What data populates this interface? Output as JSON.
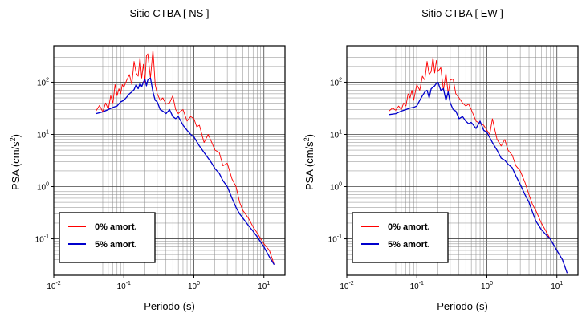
{
  "chart_data": [
    {
      "type": "line",
      "title": "Sitio CTBA [ NS ]",
      "xlabel": "Periodo (s)",
      "ylabel_base": "PSA (cm/s",
      "ylabel_sup": "2",
      "ylabel_close": ")",
      "xscale": "log",
      "yscale": "log",
      "xlim": [
        0.01,
        20
      ],
      "ylim": [
        0.02,
        500
      ],
      "grid": true,
      "legend_position": "bottom-left",
      "x_ticks": [
        {
          "value": 0.01,
          "base": "10",
          "exp": "-2"
        },
        {
          "value": 0.1,
          "base": "10",
          "exp": "-1"
        },
        {
          "value": 1,
          "base": "10",
          "exp": "0"
        },
        {
          "value": 10,
          "base": "10",
          "exp": "1"
        }
      ],
      "y_ticks": [
        {
          "value": 0.1,
          "base": "10",
          "exp": "-1"
        },
        {
          "value": 1,
          "base": "10",
          "exp": "0"
        },
        {
          "value": 10,
          "base": "10",
          "exp": "1"
        },
        {
          "value": 100,
          "base": "10",
          "exp": "2"
        }
      ],
      "series": [
        {
          "name": "0% amort.",
          "color": "#ff0000",
          "x": [
            0.04,
            0.045,
            0.05,
            0.055,
            0.06,
            0.065,
            0.07,
            0.075,
            0.08,
            0.085,
            0.09,
            0.095,
            0.1,
            0.11,
            0.12,
            0.13,
            0.14,
            0.15,
            0.16,
            0.17,
            0.18,
            0.19,
            0.2,
            0.21,
            0.22,
            0.24,
            0.26,
            0.28,
            0.3,
            0.33,
            0.36,
            0.4,
            0.45,
            0.5,
            0.55,
            0.6,
            0.65,
            0.7,
            0.8,
            0.9,
            1.0,
            1.1,
            1.2,
            1.4,
            1.6,
            1.8,
            2.0,
            2.3,
            2.6,
            3.0,
            3.5,
            4.0,
            4.5,
            5.0,
            6.0,
            7.0,
            8.0,
            10.0,
            12.0,
            14.0
          ],
          "y": [
            28,
            36,
            27,
            40,
            30,
            55,
            40,
            90,
            55,
            75,
            60,
            90,
            80,
            110,
            140,
            90,
            250,
            150,
            130,
            300,
            120,
            220,
            100,
            320,
            350,
            120,
            420,
            90,
            60,
            45,
            50,
            38,
            40,
            55,
            30,
            25,
            28,
            30,
            18,
            22,
            20,
            14,
            15,
            7,
            10,
            7,
            5,
            4.5,
            2.5,
            2.8,
            1.4,
            1.0,
            0.5,
            0.35,
            0.25,
            0.17,
            0.13,
            0.08,
            0.06,
            0.032
          ]
        },
        {
          "name": "5% amort.",
          "color": "#0000cc",
          "x": [
            0.04,
            0.05,
            0.06,
            0.07,
            0.08,
            0.09,
            0.1,
            0.11,
            0.12,
            0.13,
            0.14,
            0.15,
            0.16,
            0.17,
            0.18,
            0.19,
            0.2,
            0.21,
            0.22,
            0.24,
            0.26,
            0.28,
            0.3,
            0.33,
            0.36,
            0.4,
            0.45,
            0.5,
            0.55,
            0.6,
            0.7,
            0.8,
            0.9,
            1.0,
            1.2,
            1.4,
            1.6,
            1.8,
            2.0,
            2.3,
            2.6,
            3.0,
            3.5,
            4.0,
            4.5,
            5.0,
            6.0,
            7.0,
            8.0,
            10.0,
            12.0,
            14.0
          ],
          "y": [
            25,
            27,
            30,
            33,
            35,
            42,
            45,
            52,
            60,
            65,
            72,
            90,
            75,
            95,
            82,
            100,
            115,
            85,
            110,
            120,
            65,
            45,
            42,
            30,
            28,
            25,
            30,
            22,
            20,
            22,
            15,
            12,
            10,
            9,
            6,
            4.5,
            3.5,
            2.8,
            2.2,
            1.8,
            1.3,
            1.0,
            0.6,
            0.4,
            0.3,
            0.25,
            0.18,
            0.14,
            0.11,
            0.07,
            0.045,
            0.032
          ]
        }
      ]
    },
    {
      "type": "line",
      "title": "Sitio CTBA [ EW ]",
      "xlabel": "Periodo (s)",
      "ylabel_base": "PSA (cm/s",
      "ylabel_sup": "2",
      "ylabel_close": ")",
      "xscale": "log",
      "yscale": "log",
      "xlim": [
        0.01,
        20
      ],
      "ylim": [
        0.02,
        500
      ],
      "grid": true,
      "legend_position": "bottom-left",
      "x_ticks": [
        {
          "value": 0.01,
          "base": "10",
          "exp": "-2"
        },
        {
          "value": 0.1,
          "base": "10",
          "exp": "-1"
        },
        {
          "value": 1,
          "base": "10",
          "exp": "0"
        },
        {
          "value": 10,
          "base": "10",
          "exp": "1"
        }
      ],
      "y_ticks": [
        {
          "value": 0.1,
          "base": "10",
          "exp": "-1"
        },
        {
          "value": 1,
          "base": "10",
          "exp": "0"
        },
        {
          "value": 10,
          "base": "10",
          "exp": "1"
        },
        {
          "value": 100,
          "base": "10",
          "exp": "2"
        }
      ],
      "series": [
        {
          "name": "0% amort.",
          "color": "#ff0000",
          "x": [
            0.04,
            0.045,
            0.05,
            0.055,
            0.06,
            0.065,
            0.07,
            0.075,
            0.08,
            0.085,
            0.09,
            0.1,
            0.11,
            0.12,
            0.13,
            0.14,
            0.15,
            0.16,
            0.17,
            0.18,
            0.19,
            0.2,
            0.22,
            0.24,
            0.26,
            0.28,
            0.3,
            0.33,
            0.36,
            0.4,
            0.45,
            0.5,
            0.55,
            0.6,
            0.7,
            0.8,
            0.9,
            1.0,
            1.1,
            1.2,
            1.4,
            1.6,
            1.8,
            2.0,
            2.3,
            2.6,
            3.0,
            3.5,
            4.0,
            4.5,
            5.0,
            6.0,
            7.0,
            8.0,
            10.0,
            12.0,
            14.0
          ],
          "y": [
            28,
            32,
            29,
            35,
            30,
            40,
            35,
            60,
            50,
            70,
            45,
            90,
            70,
            130,
            110,
            250,
            140,
            160,
            300,
            150,
            260,
            160,
            190,
            70,
            150,
            60,
            110,
            115,
            60,
            50,
            40,
            35,
            38,
            30,
            18,
            16,
            15,
            12,
            10,
            20,
            8,
            6,
            8,
            5,
            4,
            2.5,
            2.0,
            1.2,
            0.7,
            0.45,
            0.35,
            0.2,
            0.14,
            0.1,
            0.06,
            0.04,
            0.022
          ]
        },
        {
          "name": "5% amort.",
          "color": "#0000cc",
          "x": [
            0.04,
            0.05,
            0.06,
            0.07,
            0.08,
            0.09,
            0.1,
            0.11,
            0.12,
            0.13,
            0.14,
            0.15,
            0.16,
            0.17,
            0.18,
            0.19,
            0.2,
            0.22,
            0.24,
            0.26,
            0.28,
            0.3,
            0.33,
            0.36,
            0.4,
            0.45,
            0.5,
            0.55,
            0.6,
            0.7,
            0.8,
            0.9,
            1.0,
            1.2,
            1.4,
            1.6,
            1.8,
            2.0,
            2.3,
            2.6,
            3.0,
            3.5,
            4.0,
            4.5,
            5.0,
            6.0,
            7.0,
            8.0,
            10.0,
            12.0,
            14.0
          ],
          "y": [
            24,
            25,
            28,
            30,
            32,
            33,
            35,
            45,
            55,
            65,
            70,
            50,
            75,
            80,
            85,
            95,
            100,
            70,
            75,
            45,
            65,
            40,
            30,
            28,
            20,
            22,
            18,
            16,
            17,
            13,
            18,
            12,
            11,
            7,
            5,
            3.5,
            3.2,
            2.7,
            2.3,
            1.6,
            1.1,
            0.7,
            0.5,
            0.32,
            0.22,
            0.15,
            0.12,
            0.1,
            0.06,
            0.04,
            0.022
          ]
        }
      ]
    }
  ]
}
